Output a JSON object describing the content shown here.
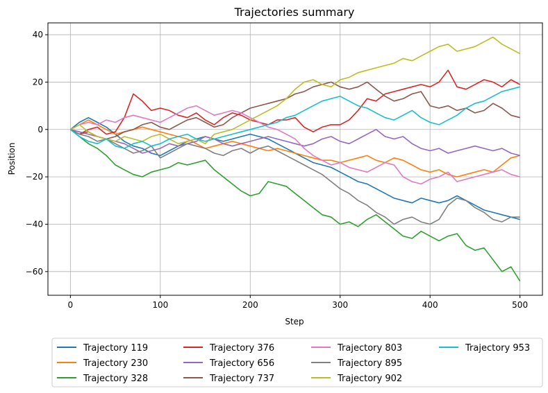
{
  "chart_data": {
    "type": "line",
    "title": "Trajectories summary",
    "xlabel": "Step",
    "ylabel": "Position",
    "xlim": [
      -25,
      525
    ],
    "ylim": [
      -70,
      45
    ],
    "xticks": [
      0,
      100,
      200,
      300,
      400,
      500
    ],
    "yticks": [
      40,
      20,
      0,
      -20,
      -40,
      -60
    ],
    "grid": true,
    "legend_position": "bottom-outside",
    "legend_columns": 4,
    "series": [
      {
        "name": "Trajectory 119",
        "color": "#1f77b4",
        "x": [
          0,
          10,
          20,
          30,
          40,
          50,
          60,
          70,
          80,
          90,
          100,
          110,
          120,
          130,
          140,
          150,
          160,
          170,
          180,
          190,
          200,
          210,
          220,
          230,
          240,
          250,
          260,
          270,
          280,
          290,
          300,
          310,
          320,
          330,
          340,
          350,
          360,
          370,
          380,
          390,
          400,
          410,
          420,
          430,
          440,
          450,
          460,
          470,
          480,
          490,
          500
        ],
        "y": [
          0,
          3,
          5,
          3,
          1,
          -2,
          -5,
          -7,
          -8,
          -10,
          -11,
          -9,
          -7,
          -5,
          -4,
          -3,
          -4,
          -5,
          -4,
          -3,
          -2,
          -3,
          -4,
          -6,
          -8,
          -10,
          -12,
          -14,
          -15,
          -16,
          -18,
          -20,
          -22,
          -23,
          -25,
          -27,
          -29,
          -30,
          -31,
          -29,
          -30,
          -31,
          -30,
          -28,
          -30,
          -32,
          -34,
          -35,
          -36,
          -37,
          -38
        ]
      },
      {
        "name": "Trajectory 230",
        "color": "#ff7f0e",
        "x": [
          0,
          10,
          20,
          30,
          40,
          50,
          60,
          70,
          80,
          90,
          100,
          110,
          120,
          130,
          140,
          150,
          160,
          170,
          180,
          190,
          200,
          210,
          220,
          230,
          240,
          250,
          260,
          270,
          280,
          290,
          300,
          310,
          320,
          330,
          340,
          350,
          360,
          370,
          380,
          390,
          400,
          410,
          420,
          430,
          440,
          450,
          460,
          470,
          480,
          490,
          500
        ],
        "y": [
          0,
          2,
          4,
          2,
          0,
          -2,
          -1,
          0,
          1,
          0,
          -1,
          -2,
          -3,
          -4,
          -6,
          -8,
          -7,
          -6,
          -5,
          -6,
          -7,
          -8,
          -9,
          -8,
          -9,
          -10,
          -11,
          -12,
          -13,
          -13,
          -14,
          -13,
          -12,
          -11,
          -13,
          -14,
          -12,
          -13,
          -15,
          -17,
          -18,
          -17,
          -19,
          -20,
          -19,
          -18,
          -17,
          -18,
          -15,
          -12,
          -11
        ]
      },
      {
        "name": "Trajectory 328",
        "color": "#2ca02c",
        "x": [
          0,
          10,
          20,
          30,
          40,
          50,
          60,
          70,
          80,
          90,
          100,
          110,
          120,
          130,
          140,
          150,
          160,
          170,
          180,
          190,
          200,
          210,
          220,
          230,
          240,
          250,
          260,
          270,
          280,
          290,
          300,
          310,
          320,
          330,
          340,
          350,
          360,
          370,
          380,
          390,
          400,
          410,
          420,
          430,
          440,
          450,
          460,
          470,
          480,
          490,
          500
        ],
        "y": [
          0,
          -3,
          -6,
          -8,
          -11,
          -15,
          -17,
          -19,
          -20,
          -18,
          -17,
          -16,
          -14,
          -15,
          -14,
          -13,
          -17,
          -20,
          -23,
          -26,
          -28,
          -27,
          -22,
          -23,
          -24,
          -27,
          -30,
          -33,
          -36,
          -37,
          -40,
          -39,
          -41,
          -38,
          -36,
          -39,
          -42,
          -45,
          -46,
          -43,
          -45,
          -47,
          -45,
          -44,
          -49,
          -51,
          -50,
          -55,
          -60,
          -58,
          -64
        ]
      },
      {
        "name": "Trajectory 376",
        "color": "#d62728",
        "x": [
          0,
          10,
          20,
          30,
          40,
          50,
          60,
          70,
          80,
          90,
          100,
          110,
          120,
          130,
          140,
          150,
          160,
          170,
          180,
          190,
          200,
          210,
          220,
          230,
          240,
          250,
          260,
          270,
          280,
          290,
          300,
          310,
          320,
          330,
          340,
          350,
          360,
          370,
          380,
          390,
          400,
          410,
          420,
          430,
          440,
          450,
          460,
          470,
          480,
          490,
          500
        ],
        "y": [
          0,
          -2,
          0,
          1,
          -2,
          -1,
          5,
          15,
          12,
          8,
          9,
          8,
          6,
          5,
          7,
          4,
          2,
          5,
          7,
          6,
          4,
          3,
          2,
          4,
          4,
          5,
          1,
          -1,
          1,
          2,
          2,
          4,
          8,
          13,
          12,
          15,
          16,
          17,
          18,
          19,
          18,
          20,
          25,
          18,
          17,
          19,
          21,
          20,
          18,
          21,
          19
        ]
      },
      {
        "name": "Trajectory 656",
        "color": "#9467bd",
        "x": [
          0,
          10,
          20,
          30,
          40,
          50,
          60,
          70,
          80,
          90,
          100,
          110,
          120,
          130,
          140,
          150,
          160,
          170,
          180,
          190,
          200,
          210,
          220,
          230,
          240,
          250,
          260,
          270,
          280,
          290,
          300,
          310,
          320,
          330,
          340,
          350,
          360,
          370,
          380,
          390,
          400,
          410,
          420,
          430,
          440,
          450,
          460,
          470,
          480,
          490,
          500
        ],
        "y": [
          0,
          -1,
          -2,
          -3,
          -4,
          -5,
          -6,
          -8,
          -10,
          -9,
          -8,
          -6,
          -7,
          -6,
          -5,
          -3,
          -4,
          -6,
          -7,
          -6,
          -5,
          -4,
          -3,
          -4,
          -5,
          -6,
          -7,
          -6,
          -4,
          -3,
          -5,
          -6,
          -4,
          -2,
          0,
          -3,
          -4,
          -3,
          -6,
          -8,
          -9,
          -8,
          -10,
          -9,
          -8,
          -7,
          -8,
          -9,
          -8,
          -10,
          -11
        ]
      },
      {
        "name": "Trajectory 737",
        "color": "#8c564b",
        "x": [
          0,
          10,
          20,
          30,
          40,
          50,
          60,
          70,
          80,
          90,
          100,
          110,
          120,
          130,
          140,
          150,
          160,
          170,
          180,
          190,
          200,
          210,
          220,
          230,
          240,
          250,
          260,
          270,
          280,
          290,
          300,
          310,
          320,
          330,
          340,
          350,
          360,
          370,
          380,
          390,
          400,
          410,
          420,
          430,
          440,
          450,
          460,
          470,
          480,
          490,
          500
        ],
        "y": [
          0,
          -2,
          -1,
          -3,
          -4,
          -3,
          -1,
          0,
          2,
          3,
          1,
          0,
          2,
          4,
          5,
          3,
          1,
          2,
          5,
          7,
          9,
          10,
          11,
          12,
          13,
          15,
          16,
          18,
          19,
          20,
          18,
          17,
          18,
          20,
          17,
          14,
          12,
          13,
          15,
          16,
          10,
          9,
          10,
          8,
          9,
          7,
          8,
          11,
          9,
          6,
          5
        ]
      },
      {
        "name": "Trajectory 803",
        "color": "#e377c2",
        "x": [
          0,
          10,
          20,
          30,
          40,
          50,
          60,
          70,
          80,
          90,
          100,
          110,
          120,
          130,
          140,
          150,
          160,
          170,
          180,
          190,
          200,
          210,
          220,
          230,
          240,
          250,
          260,
          270,
          280,
          290,
          300,
          310,
          320,
          330,
          340,
          350,
          360,
          370,
          380,
          390,
          400,
          410,
          420,
          430,
          440,
          450,
          460,
          470,
          480,
          490,
          500
        ],
        "y": [
          0,
          2,
          3,
          2,
          4,
          3,
          5,
          6,
          5,
          4,
          3,
          5,
          7,
          9,
          10,
          8,
          6,
          7,
          8,
          7,
          5,
          3,
          1,
          0,
          -2,
          -4,
          -8,
          -11,
          -13,
          -15,
          -14,
          -16,
          -17,
          -18,
          -16,
          -14,
          -15,
          -20,
          -22,
          -23,
          -21,
          -20,
          -18,
          -22,
          -21,
          -20,
          -19,
          -18,
          -17,
          -19,
          -20
        ]
      },
      {
        "name": "Trajectory 895",
        "color": "#7f7f7f",
        "x": [
          0,
          10,
          20,
          30,
          40,
          50,
          60,
          70,
          80,
          90,
          100,
          110,
          120,
          130,
          140,
          150,
          160,
          170,
          180,
          190,
          200,
          210,
          220,
          230,
          240,
          250,
          260,
          270,
          280,
          290,
          300,
          310,
          320,
          330,
          340,
          350,
          360,
          370,
          380,
          390,
          400,
          410,
          420,
          430,
          440,
          450,
          460,
          470,
          480,
          490,
          500
        ],
        "y": [
          0,
          -2,
          -3,
          -5,
          -4,
          -6,
          -8,
          -10,
          -9,
          -7,
          -12,
          -10,
          -8,
          -6,
          -7,
          -8,
          -10,
          -11,
          -9,
          -8,
          -10,
          -8,
          -7,
          -9,
          -11,
          -13,
          -15,
          -17,
          -19,
          -22,
          -25,
          -27,
          -30,
          -32,
          -35,
          -37,
          -40,
          -38,
          -37,
          -39,
          -40,
          -38,
          -32,
          -29,
          -30,
          -33,
          -35,
          -38,
          -39,
          -37,
          -37
        ]
      },
      {
        "name": "Trajectory 902",
        "color": "#bcbd22",
        "x": [
          0,
          10,
          20,
          30,
          40,
          50,
          60,
          70,
          80,
          90,
          100,
          110,
          120,
          130,
          140,
          150,
          160,
          170,
          180,
          190,
          200,
          210,
          220,
          230,
          240,
          250,
          260,
          270,
          280,
          290,
          300,
          310,
          320,
          330,
          340,
          350,
          360,
          370,
          380,
          390,
          400,
          410,
          420,
          430,
          440,
          450,
          460,
          470,
          480,
          490,
          500
        ],
        "y": [
          0,
          2,
          -1,
          -3,
          -4,
          -5,
          -3,
          -4,
          -5,
          -3,
          -2,
          -4,
          -6,
          -5,
          -4,
          -6,
          -2,
          -1,
          0,
          2,
          4,
          6,
          8,
          10,
          13,
          17,
          20,
          21,
          19,
          18,
          21,
          22,
          24,
          25,
          26,
          27,
          28,
          30,
          29,
          31,
          33,
          35,
          36,
          33,
          34,
          35,
          37,
          39,
          36,
          34,
          32
        ]
      },
      {
        "name": "Trajectory 953",
        "color": "#17becf",
        "x": [
          0,
          10,
          20,
          30,
          40,
          50,
          60,
          70,
          80,
          90,
          100,
          110,
          120,
          130,
          140,
          150,
          160,
          170,
          180,
          190,
          200,
          210,
          220,
          230,
          240,
          250,
          260,
          270,
          280,
          290,
          300,
          310,
          320,
          330,
          340,
          350,
          360,
          370,
          380,
          390,
          400,
          410,
          420,
          430,
          440,
          450,
          460,
          470,
          480,
          490,
          500
        ],
        "y": [
          0,
          -3,
          -5,
          -6,
          -4,
          -7,
          -8,
          -6,
          -5,
          -7,
          -6,
          -4,
          -3,
          -2,
          -4,
          -5,
          -4,
          -3,
          -2,
          -1,
          0,
          1,
          2,
          3,
          5,
          6,
          8,
          10,
          12,
          13,
          14,
          12,
          10,
          9,
          7,
          5,
          4,
          6,
          8,
          5,
          3,
          2,
          4,
          6,
          9,
          11,
          12,
          14,
          16,
          17,
          18
        ]
      }
    ]
  }
}
